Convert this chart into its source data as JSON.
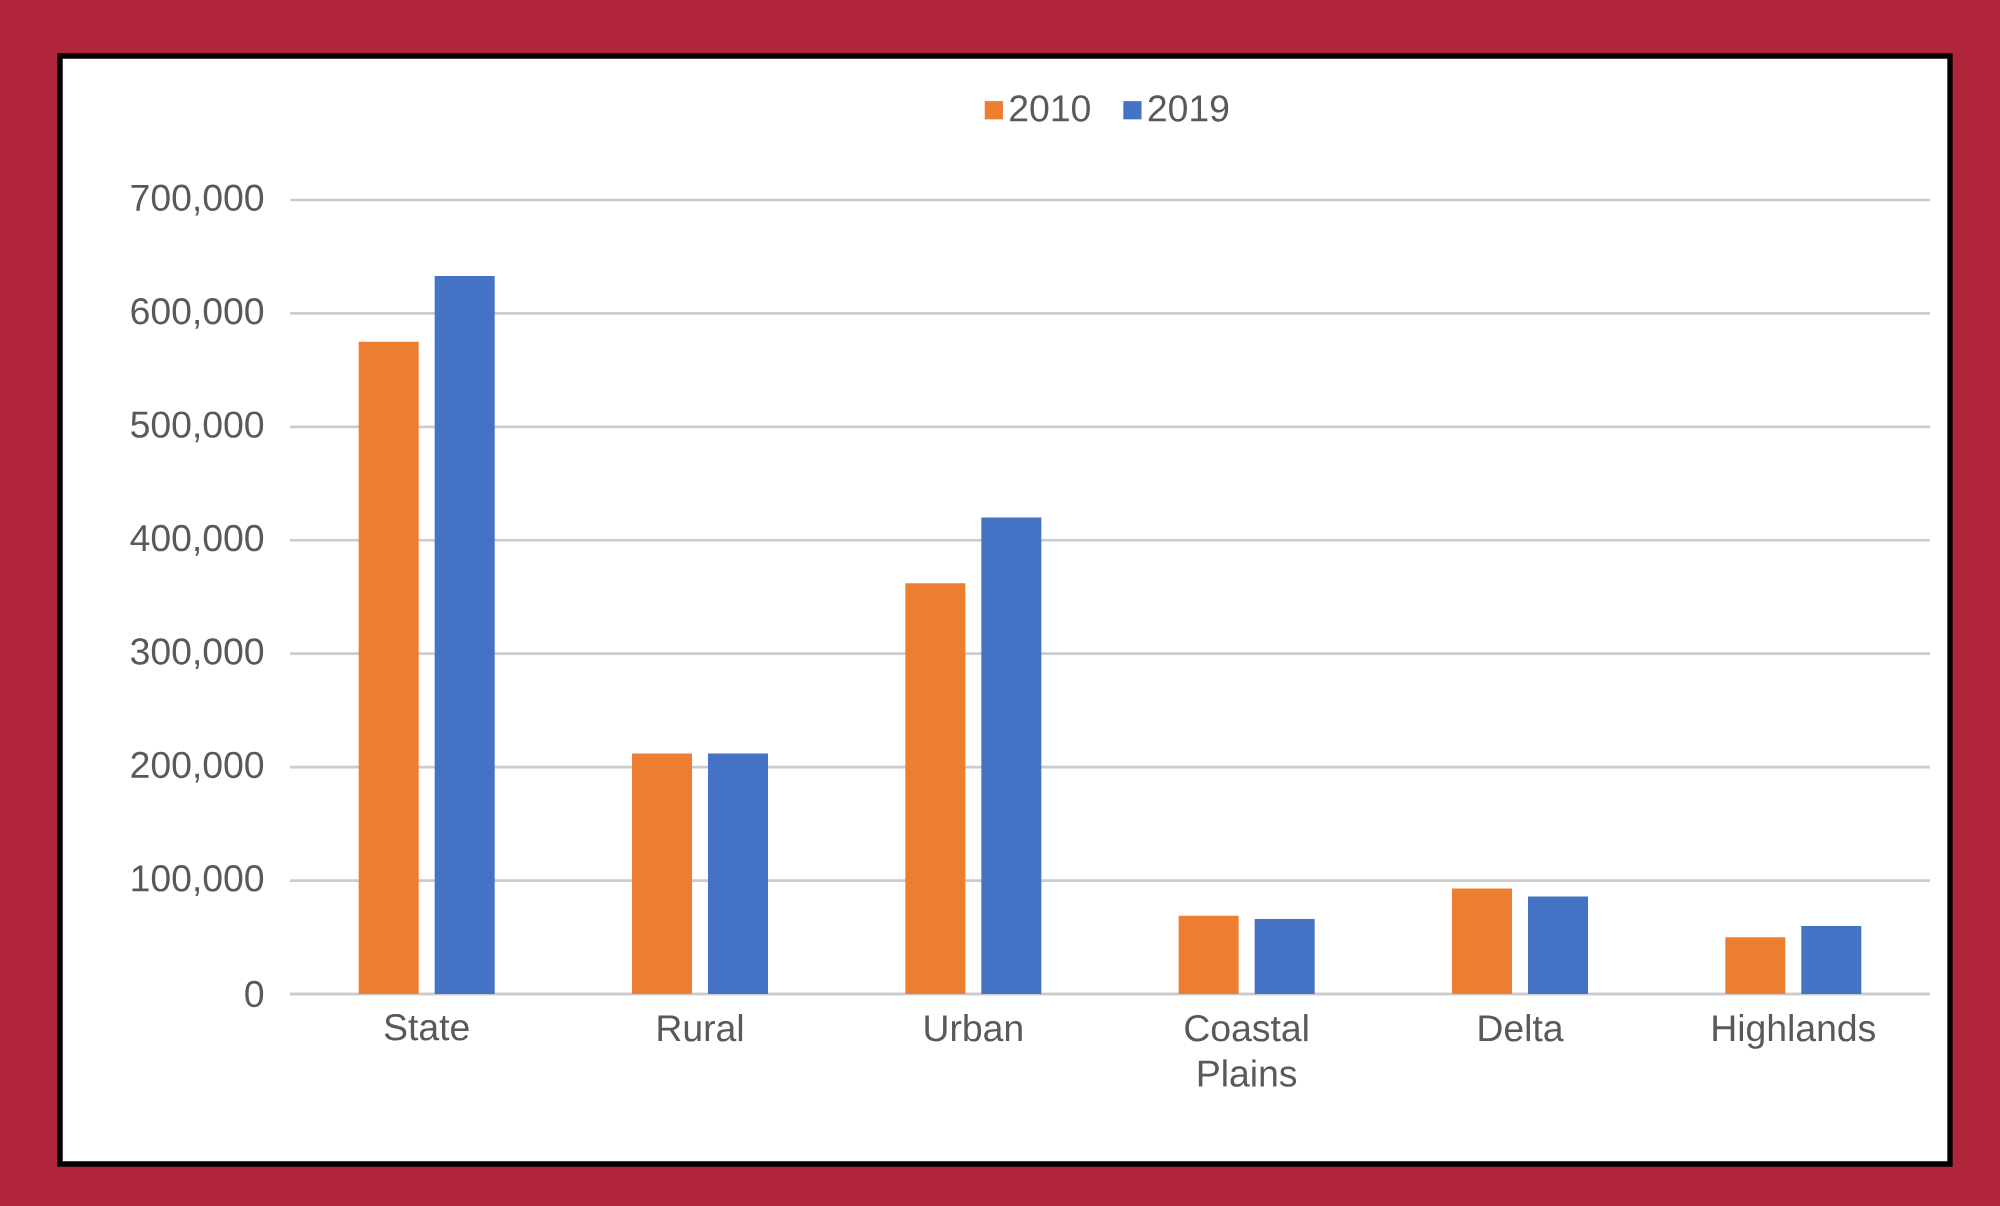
{
  "chart_data": {
    "type": "bar",
    "categories": [
      "State",
      "Rural",
      "Urban",
      "Coastal Plains",
      "Delta",
      "Highlands"
    ],
    "series": [
      {
        "name": "2010",
        "color": "#ed7d31",
        "values": [
          575000,
          212000,
          362000,
          69000,
          93000,
          50000
        ]
      },
      {
        "name": "2019",
        "color": "#4472c4",
        "values": [
          633000,
          212000,
          420000,
          66000,
          86000,
          60000
        ]
      }
    ],
    "ylim": [
      0,
      700000
    ],
    "yticks": [
      0,
      {
        "value": 100000,
        "label": "100,000"
      },
      {
        "value": 200000,
        "label": "200,000"
      },
      {
        "value": 300000,
        "label": "300,000"
      },
      {
        "value": 400000,
        "label": "400,000"
      },
      {
        "value": 500000,
        "label": "500,000"
      },
      {
        "value": 600000,
        "label": "600,000"
      },
      {
        "value": 700000,
        "label": "700,000"
      }
    ],
    "grid": "y",
    "legend": "top"
  }
}
